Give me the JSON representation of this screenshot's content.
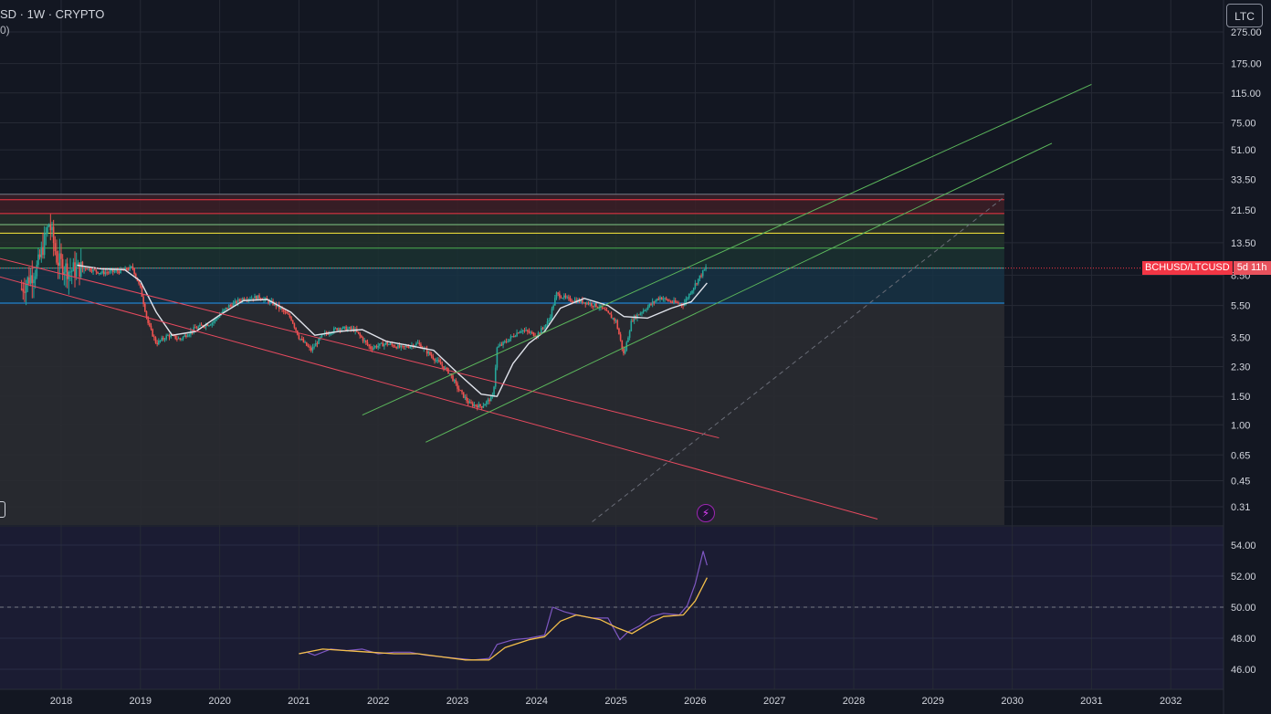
{
  "header": {
    "title": "SD · 1W · CRYPTO",
    "subtitle": "0)"
  },
  "toolbar": {
    "symbol_button": "LTC"
  },
  "price_tag": {
    "symbol": "BCHUSD/LTCUSD",
    "countdown": "5d 11h"
  },
  "colors": {
    "background": "#131722",
    "grid": "#2a2e39",
    "candle_up": "#26a69a",
    "candle_down": "#ef5350",
    "ma_line": "#e0e3eb",
    "channel_red": "#e84a5f",
    "channel_green": "#5cb85c",
    "rsi_line": "#7e57c2",
    "rsi_ma": "#f5c04a"
  },
  "chart_data": [
    {
      "type": "line",
      "series_kind": "candlestick",
      "scale": "log",
      "x_ticks": [
        "2018",
        "2019",
        "2020",
        "2021",
        "2022",
        "2023",
        "2024",
        "2025",
        "2026",
        "2027",
        "2028",
        "2029",
        "2030",
        "2031",
        "2032"
      ],
      "y_ticks": [
        "275.00",
        "175.00",
        "115.00",
        "75.00",
        "51.00",
        "33.50",
        "21.50",
        "13.50",
        "8.50",
        "5.50",
        "3.50",
        "2.30",
        "1.50",
        "1.00",
        "0.65",
        "0.45",
        "0.31"
      ],
      "ylim": [
        0.25,
        300
      ],
      "close_path": [
        [
          2017.5,
          7.0
        ],
        [
          2017.7,
          9.5
        ],
        [
          2017.85,
          18.0
        ],
        [
          2017.95,
          10.5
        ],
        [
          2018.1,
          9.0
        ],
        [
          2018.3,
          9.5
        ],
        [
          2018.5,
          8.8
        ],
        [
          2018.75,
          9.0
        ],
        [
          2018.9,
          9.5
        ],
        [
          2019.0,
          7.0
        ],
        [
          2019.1,
          4.2
        ],
        [
          2019.2,
          3.2
        ],
        [
          2019.35,
          3.6
        ],
        [
          2019.5,
          3.4
        ],
        [
          2019.7,
          4.0
        ],
        [
          2019.9,
          4.3
        ],
        [
          2020.1,
          5.4
        ],
        [
          2020.3,
          6.1
        ],
        [
          2020.5,
          6.2
        ],
        [
          2020.7,
          5.6
        ],
        [
          2020.9,
          4.6
        ],
        [
          2021.0,
          3.5
        ],
        [
          2021.15,
          2.9
        ],
        [
          2021.3,
          3.6
        ],
        [
          2021.5,
          4.0
        ],
        [
          2021.7,
          3.9
        ],
        [
          2021.9,
          3.0
        ],
        [
          2022.1,
          3.2
        ],
        [
          2022.3,
          3.0
        ],
        [
          2022.5,
          3.2
        ],
        [
          2022.7,
          2.6
        ],
        [
          2022.9,
          2.1
        ],
        [
          2023.0,
          1.7
        ],
        [
          2023.15,
          1.35
        ],
        [
          2023.3,
          1.3
        ],
        [
          2023.45,
          1.5
        ],
        [
          2023.5,
          3.0
        ],
        [
          2023.65,
          3.4
        ],
        [
          2023.8,
          3.9
        ],
        [
          2024.0,
          3.6
        ],
        [
          2024.15,
          4.4
        ],
        [
          2024.25,
          6.5
        ],
        [
          2024.4,
          6.0
        ],
        [
          2024.6,
          5.8
        ],
        [
          2024.8,
          5.4
        ],
        [
          2025.0,
          4.4
        ],
        [
          2025.1,
          2.7
        ],
        [
          2025.2,
          4.5
        ],
        [
          2025.4,
          5.4
        ],
        [
          2025.55,
          6.2
        ],
        [
          2025.7,
          5.8
        ],
        [
          2025.85,
          5.6
        ],
        [
          2025.95,
          6.8
        ],
        [
          2026.05,
          8.2
        ],
        [
          2026.15,
          9.7
        ]
      ],
      "ma_path": [
        [
          2018.2,
          9.8
        ],
        [
          2018.5,
          9.3
        ],
        [
          2018.8,
          9.2
        ],
        [
          2019.0,
          7.8
        ],
        [
          2019.2,
          5.0
        ],
        [
          2019.4,
          3.6
        ],
        [
          2019.7,
          3.8
        ],
        [
          2020.0,
          4.8
        ],
        [
          2020.3,
          5.9
        ],
        [
          2020.6,
          6.0
        ],
        [
          2020.9,
          5.0
        ],
        [
          2021.2,
          3.6
        ],
        [
          2021.5,
          3.8
        ],
        [
          2021.8,
          3.9
        ],
        [
          2022.1,
          3.3
        ],
        [
          2022.4,
          3.1
        ],
        [
          2022.7,
          2.9
        ],
        [
          2023.0,
          2.1
        ],
        [
          2023.3,
          1.55
        ],
        [
          2023.5,
          1.5
        ],
        [
          2023.7,
          2.4
        ],
        [
          2023.9,
          3.2
        ],
        [
          2024.1,
          3.8
        ],
        [
          2024.3,
          5.3
        ],
        [
          2024.6,
          6.1
        ],
        [
          2024.9,
          5.5
        ],
        [
          2025.1,
          4.7
        ],
        [
          2025.4,
          4.6
        ],
        [
          2025.7,
          5.3
        ],
        [
          2025.95,
          5.8
        ],
        [
          2026.15,
          7.6
        ]
      ],
      "fib_levels": [
        {
          "y": 27.0,
          "color": "#787b86"
        },
        {
          "y": 25.0,
          "color": "#f23645"
        },
        {
          "y": 20.5,
          "color": "#f23645"
        },
        {
          "y": 17.5,
          "color": "#81c784"
        },
        {
          "y": 15.5,
          "color": "#ffeb3b"
        },
        {
          "y": 12.5,
          "color": "#4caf50"
        },
        {
          "y": 9.4,
          "color": "#26a69a"
        },
        {
          "y": 5.7,
          "color": "#2196f3"
        }
      ],
      "fib_x_range": [
        2017.0,
        2029.9
      ],
      "channels": [
        {
          "color": "#e84a5f",
          "p1": [
            2017.0,
            11.5
          ],
          "p2": [
            2026.3,
            0.83
          ]
        },
        {
          "color": "#e84a5f",
          "p1": [
            2017.0,
            8.9
          ],
          "p2": [
            2028.3,
            0.26
          ]
        },
        {
          "color": "#5cb85c",
          "p1": [
            2021.8,
            1.15
          ],
          "p2": [
            2031.0,
            130
          ]
        },
        {
          "color": "#5cb85c",
          "p1": [
            2022.6,
            0.78
          ],
          "p2": [
            2030.5,
            56
          ]
        }
      ],
      "dashed_trend": {
        "p1": [
          2024.7,
          0.25
        ],
        "p2": [
          2029.9,
          26
        ]
      },
      "last_price": 9.4
    },
    {
      "type": "line",
      "series_kind": "rsi",
      "y_ticks": [
        "54.00",
        "52.00",
        "50.00",
        "48.00",
        "46.00"
      ],
      "ylim": [
        45,
        55
      ],
      "midline": 50,
      "rsi": [
        [
          2021.0,
          47.0
        ],
        [
          2021.1,
          47.1
        ],
        [
          2021.2,
          46.9
        ],
        [
          2021.4,
          47.3
        ],
        [
          2021.6,
          47.2
        ],
        [
          2021.8,
          47.3
        ],
        [
          2022.0,
          47.0
        ],
        [
          2022.2,
          47.1
        ],
        [
          2022.4,
          47.1
        ],
        [
          2022.6,
          46.9
        ],
        [
          2022.8,
          46.8
        ],
        [
          2023.0,
          46.7
        ],
        [
          2023.2,
          46.6
        ],
        [
          2023.4,
          46.7
        ],
        [
          2023.5,
          47.6
        ],
        [
          2023.7,
          47.9
        ],
        [
          2023.9,
          48.0
        ],
        [
          2024.1,
          48.2
        ],
        [
          2024.2,
          50.0
        ],
        [
          2024.35,
          49.7
        ],
        [
          2024.5,
          49.5
        ],
        [
          2024.7,
          49.3
        ],
        [
          2024.9,
          49.3
        ],
        [
          2025.05,
          47.9
        ],
        [
          2025.15,
          48.4
        ],
        [
          2025.3,
          48.8
        ],
        [
          2025.45,
          49.4
        ],
        [
          2025.6,
          49.6
        ],
        [
          2025.8,
          49.5
        ],
        [
          2025.9,
          50.1
        ],
        [
          2026.0,
          51.5
        ],
        [
          2026.1,
          53.6
        ],
        [
          2026.15,
          52.7
        ]
      ],
      "rsi_ma": [
        [
          2021.0,
          47.0
        ],
        [
          2021.3,
          47.3
        ],
        [
          2021.6,
          47.2
        ],
        [
          2021.9,
          47.1
        ],
        [
          2022.2,
          47.0
        ],
        [
          2022.5,
          47.0
        ],
        [
          2022.8,
          46.8
        ],
        [
          2023.1,
          46.6
        ],
        [
          2023.4,
          46.6
        ],
        [
          2023.6,
          47.4
        ],
        [
          2023.9,
          47.9
        ],
        [
          2024.1,
          48.1
        ],
        [
          2024.3,
          49.1
        ],
        [
          2024.5,
          49.5
        ],
        [
          2024.8,
          49.2
        ],
        [
          2025.0,
          48.7
        ],
        [
          2025.2,
          48.3
        ],
        [
          2025.4,
          48.9
        ],
        [
          2025.6,
          49.4
        ],
        [
          2025.85,
          49.5
        ],
        [
          2026.0,
          50.4
        ],
        [
          2026.15,
          51.9
        ]
      ]
    }
  ]
}
